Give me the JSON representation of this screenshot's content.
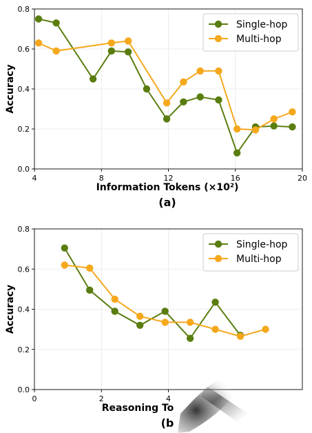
{
  "chart_data": [
    {
      "type": "line",
      "caption": "(a)",
      "xlabel": "Information Tokens (×10²)",
      "ylabel": "Accuracy",
      "xlim": [
        4,
        20
      ],
      "ylim": [
        0,
        0.8
      ],
      "xticks": [
        "4",
        "8",
        "12",
        "16",
        "20"
      ],
      "yticks": [
        "0.0",
        "0.2",
        "0.4",
        "0.6",
        "0.8"
      ],
      "grid": true,
      "legend": "top-right",
      "series": [
        {
          "name": "Single-hop",
          "color": "#5a7d10",
          "x": [
            4.25,
            5.3,
            7.5,
            8.6,
            9.6,
            10.7,
            11.9,
            12.9,
            13.9,
            15.0,
            16.1,
            17.2,
            18.3,
            19.4
          ],
          "y": [
            0.75,
            0.73,
            0.45,
            0.59,
            0.585,
            0.4,
            0.25,
            0.335,
            0.36,
            0.345,
            0.08,
            0.21,
            0.215,
            0.21
          ]
        },
        {
          "name": "Multi-hop",
          "color": "#f5a81c",
          "x": [
            4.25,
            5.3,
            8.6,
            9.6,
            11.9,
            12.9,
            13.9,
            15.0,
            16.1,
            17.2,
            18.3,
            19.4
          ],
          "y": [
            0.63,
            0.59,
            0.63,
            0.64,
            0.33,
            0.435,
            0.49,
            0.49,
            0.2,
            0.195,
            0.25,
            0.285
          ]
        }
      ]
    },
    {
      "type": "line",
      "caption": "(b",
      "xlabel": "Reasoning To",
      "ylabel": "Accuracy",
      "xlim": [
        0,
        8
      ],
      "ylim": [
        0,
        0.8
      ],
      "xticks": [
        "0",
        "2",
        "4"
      ],
      "yticks": [
        "0.0",
        "0.2",
        "0.4",
        "0.6",
        "0.8"
      ],
      "grid": true,
      "legend": "top-right",
      "series": [
        {
          "name": "Single-hop",
          "color": "#5a7d10",
          "x": [
            0.9,
            1.65,
            2.4,
            3.15,
            3.9,
            4.65,
            5.4,
            6.15
          ],
          "y": [
            0.705,
            0.495,
            0.39,
            0.32,
            0.39,
            0.255,
            0.435,
            0.27
          ]
        },
        {
          "name": "Multi-hop",
          "color": "#f5a81c",
          "x": [
            0.9,
            1.65,
            2.4,
            3.15,
            3.9,
            4.65,
            5.4,
            6.15,
            6.9
          ],
          "y": [
            0.62,
            0.605,
            0.45,
            0.365,
            0.335,
            0.335,
            0.3,
            0.265,
            0.3
          ]
        }
      ]
    }
  ]
}
